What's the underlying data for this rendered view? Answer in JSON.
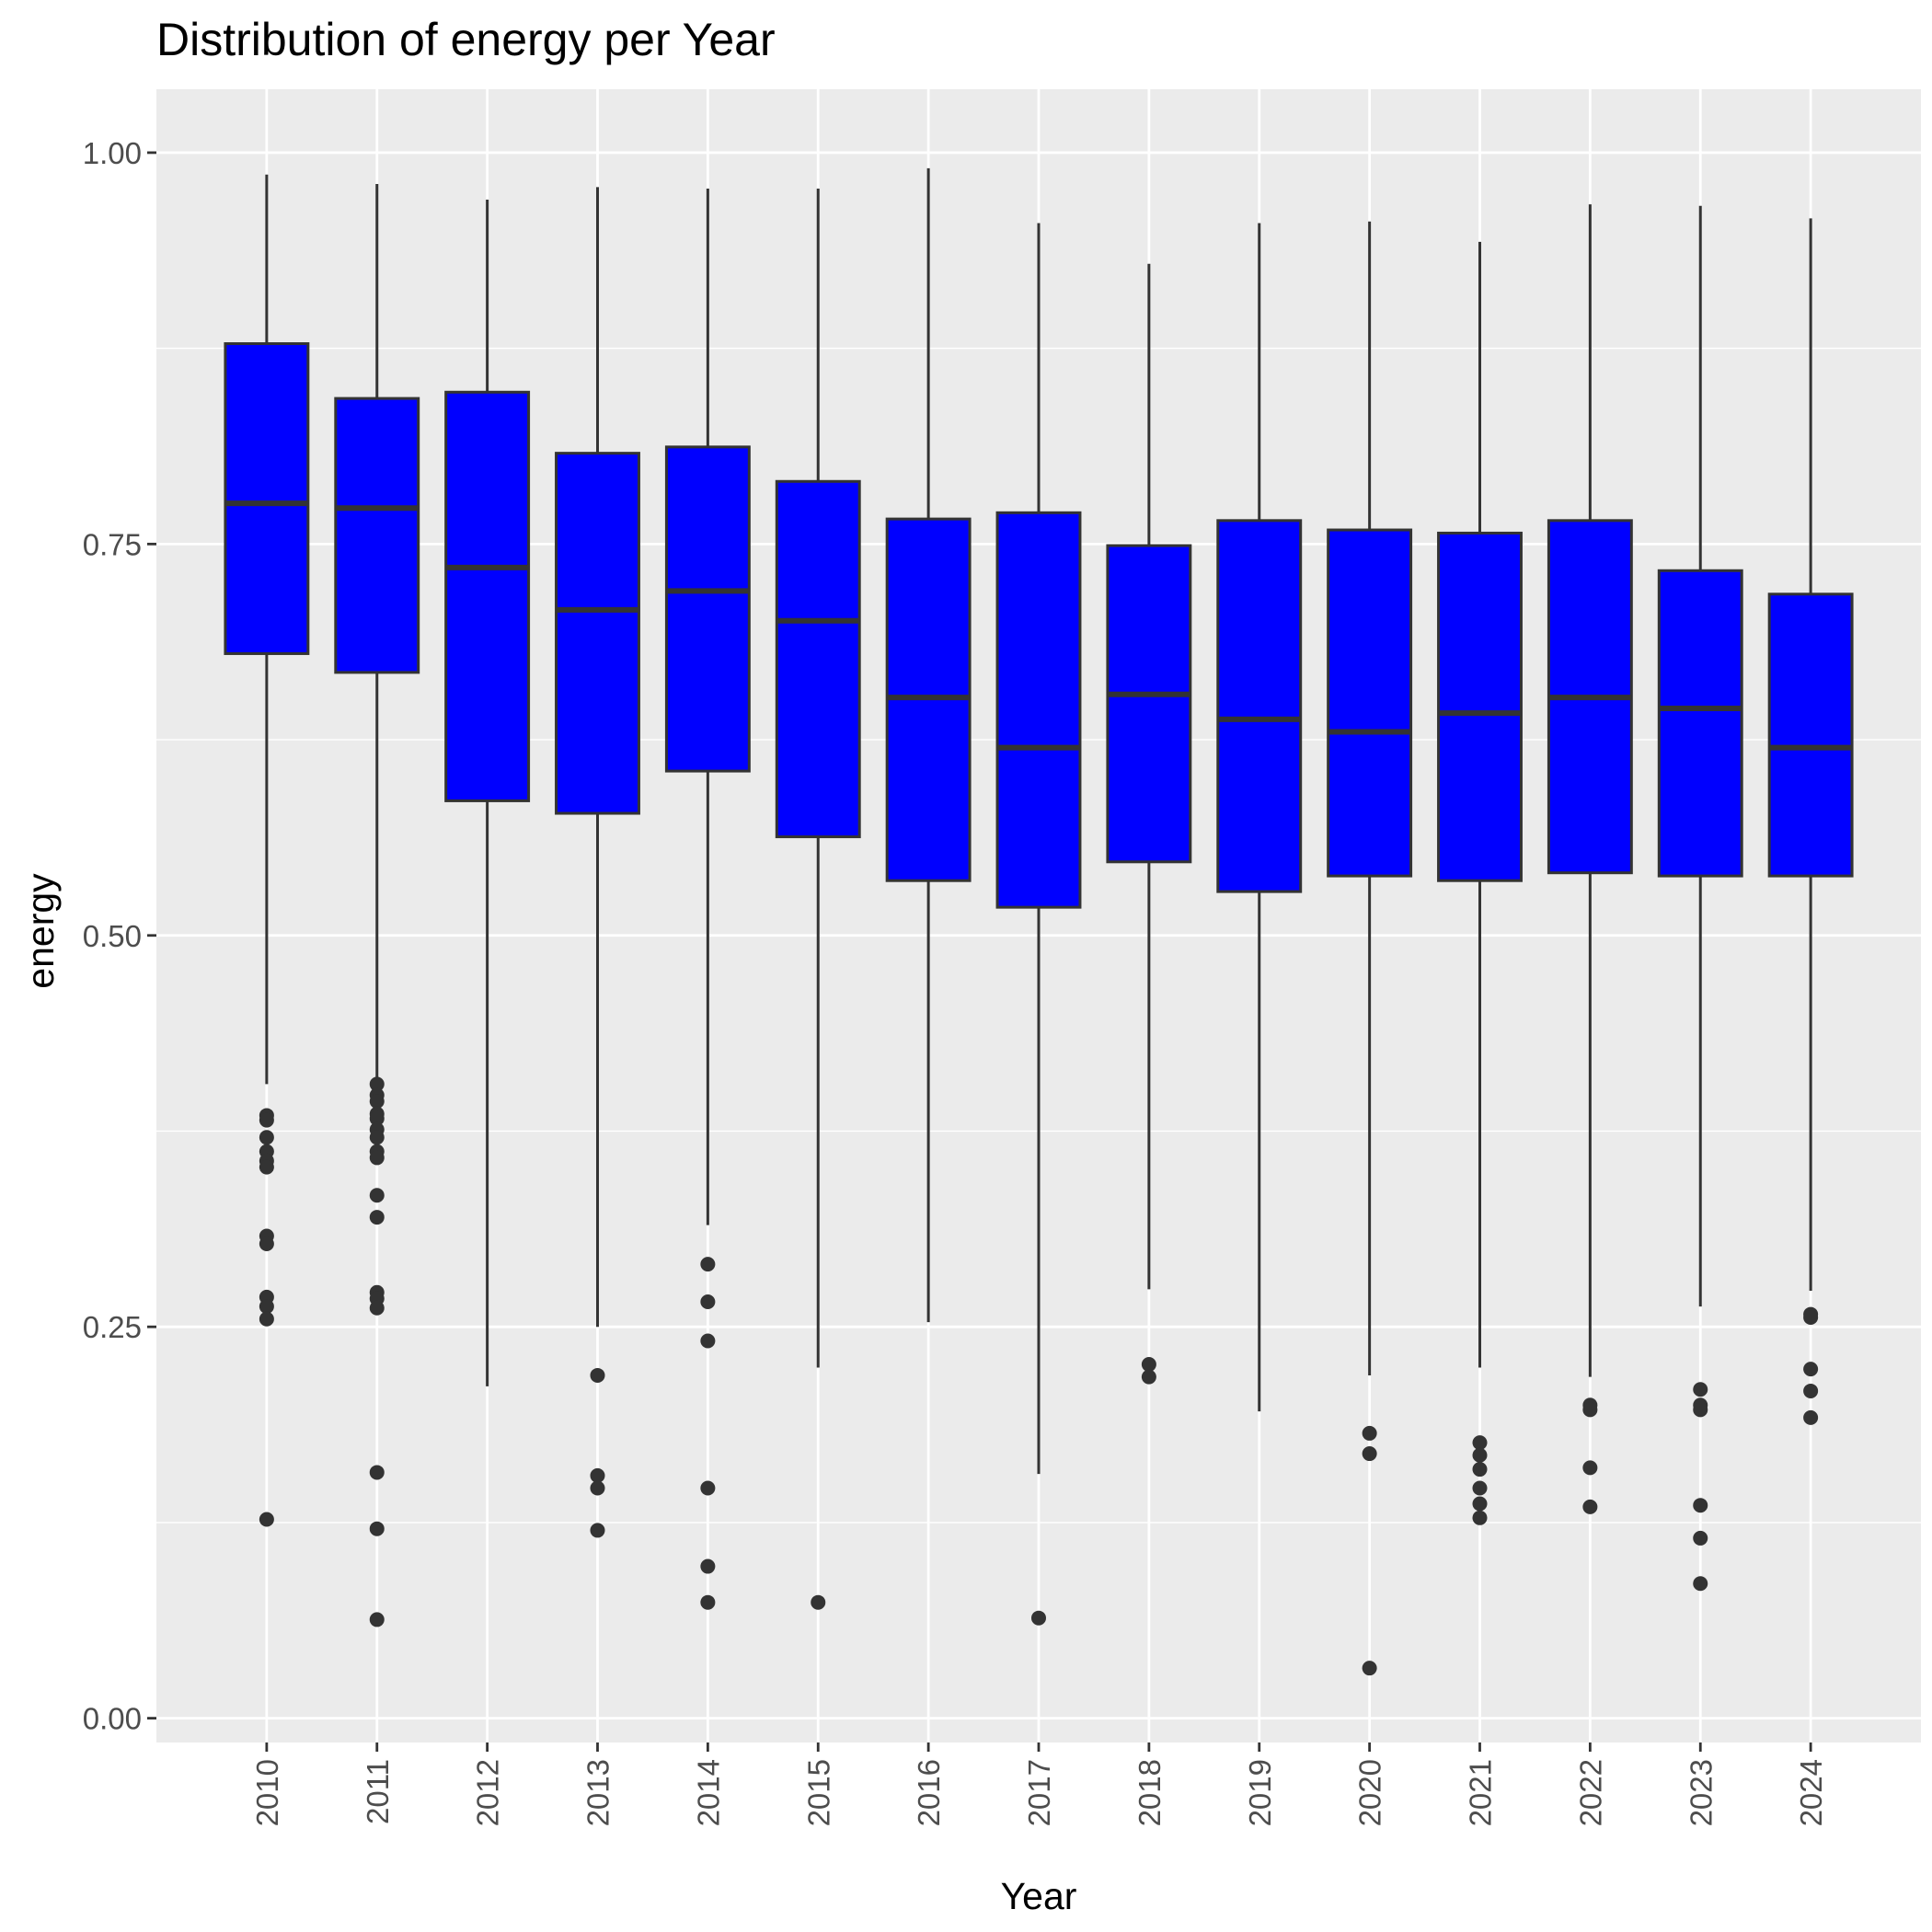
{
  "chart_data": {
    "type": "boxplot",
    "title": "Distribution of energy per Year",
    "xlabel": "Year",
    "ylabel": "energy",
    "ylim": [
      -0.0155,
      1.0405
    ],
    "yticks": [
      0.0,
      0.25,
      0.5,
      0.75,
      1.0
    ],
    "ytick_labels": [
      "0.00",
      "0.25",
      "0.50",
      "0.75",
      "1.00"
    ],
    "categories": [
      "2010",
      "2011",
      "2012",
      "2013",
      "2014",
      "2015",
      "2016",
      "2017",
      "2018",
      "2019",
      "2020",
      "2021",
      "2022",
      "2023",
      "2024"
    ],
    "box_fill": "#0000ff",
    "line_color": "#333333",
    "panel_background": "#ebebeb",
    "grid_color": "#ffffff",
    "grid": true,
    "legend": "none",
    "boxes": [
      {
        "year": "2010",
        "whisker_low": 0.405,
        "q1": 0.68,
        "median": 0.776,
        "q3": 0.878,
        "whisker_high": 0.986,
        "outliers": [
          0.385,
          0.382,
          0.371,
          0.362,
          0.356,
          0.352,
          0.308,
          0.303,
          0.269,
          0.263,
          0.255,
          0.127
        ]
      },
      {
        "year": "2011",
        "whisker_low": 0.408,
        "q1": 0.668,
        "median": 0.773,
        "q3": 0.843,
        "whisker_high": 0.98,
        "outliers": [
          0.405,
          0.398,
          0.394,
          0.386,
          0.383,
          0.376,
          0.371,
          0.362,
          0.358,
          0.334,
          0.32,
          0.272,
          0.268,
          0.262,
          0.157,
          0.121,
          0.063
        ]
      },
      {
        "year": "2012",
        "whisker_low": 0.212,
        "q1": 0.586,
        "median": 0.735,
        "q3": 0.847,
        "whisker_high": 0.97,
        "outliers": []
      },
      {
        "year": "2013",
        "whisker_low": 0.25,
        "q1": 0.578,
        "median": 0.708,
        "q3": 0.808,
        "whisker_high": 0.978,
        "outliers": [
          0.219,
          0.155,
          0.147,
          0.12
        ]
      },
      {
        "year": "2014",
        "whisker_low": 0.315,
        "q1": 0.605,
        "median": 0.72,
        "q3": 0.812,
        "whisker_high": 0.977,
        "outliers": [
          0.29,
          0.266,
          0.241,
          0.147,
          0.097,
          0.074
        ]
      },
      {
        "year": "2015",
        "whisker_low": 0.224,
        "q1": 0.563,
        "median": 0.701,
        "q3": 0.79,
        "whisker_high": 0.977,
        "outliers": [
          0.074
        ]
      },
      {
        "year": "2016",
        "whisker_low": 0.253,
        "q1": 0.535,
        "median": 0.652,
        "q3": 0.766,
        "whisker_high": 0.99,
        "outliers": []
      },
      {
        "year": "2017",
        "whisker_low": 0.156,
        "q1": 0.518,
        "median": 0.62,
        "q3": 0.77,
        "whisker_high": 0.955,
        "outliers": [
          0.064
        ]
      },
      {
        "year": "2018",
        "whisker_low": 0.274,
        "q1": 0.547,
        "median": 0.654,
        "q3": 0.749,
        "whisker_high": 0.929,
        "outliers": [
          0.226,
          0.218
        ]
      },
      {
        "year": "2019",
        "whisker_low": 0.196,
        "q1": 0.528,
        "median": 0.638,
        "q3": 0.765,
        "whisker_high": 0.955,
        "outliers": []
      },
      {
        "year": "2020",
        "whisker_low": 0.219,
        "q1": 0.538,
        "median": 0.63,
        "q3": 0.759,
        "whisker_high": 0.956,
        "outliers": [
          0.182,
          0.169,
          0.032
        ]
      },
      {
        "year": "2021",
        "whisker_low": 0.224,
        "q1": 0.535,
        "median": 0.642,
        "q3": 0.757,
        "whisker_high": 0.943,
        "outliers": [
          0.176,
          0.168,
          0.159,
          0.147,
          0.137,
          0.128
        ]
      },
      {
        "year": "2022",
        "whisker_low": 0.218,
        "q1": 0.54,
        "median": 0.652,
        "q3": 0.765,
        "whisker_high": 0.967,
        "outliers": [
          0.2,
          0.197,
          0.16,
          0.135
        ]
      },
      {
        "year": "2023",
        "whisker_low": 0.263,
        "q1": 0.538,
        "median": 0.645,
        "q3": 0.733,
        "whisker_high": 0.966,
        "outliers": [
          0.21,
          0.2,
          0.197,
          0.136,
          0.115,
          0.086
        ]
      },
      {
        "year": "2024",
        "whisker_low": 0.273,
        "q1": 0.538,
        "median": 0.62,
        "q3": 0.718,
        "whisker_high": 0.958,
        "outliers": [
          0.258,
          0.256,
          0.223,
          0.209,
          0.192
        ]
      }
    ]
  }
}
